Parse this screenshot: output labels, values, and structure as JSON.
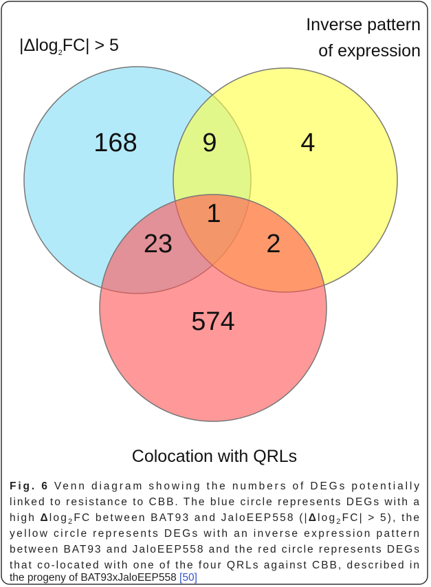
{
  "sets": [
    {
      "label_parts": [
        "|Δlog",
        "2",
        "FC| > 5"
      ]
    },
    {
      "label_lines": [
        "Inverse pattern",
        "of expression"
      ]
    },
    {
      "label": "Colocation with QRLs"
    }
  ],
  "counts": [
    168,
    9,
    4,
    1,
    23,
    2,
    574
  ],
  "caption": {
    "lines": [
      [
        "Fig. 6",
        " Venn diagram showing the numbers of DEGs potentially"
      ],
      [
        "linked to resistance to CBB. The blue circle represents DEGs with a"
      ],
      [
        "high ",
        "Δ",
        "log",
        "2",
        "FC between BAT93 and JaloEEP558 (|",
        "Δ",
        "log",
        "2",
        "FC| > 5), the"
      ],
      [
        "yellow circle represents DEGs with an inverse expression pattern"
      ],
      [
        "between BAT93 and JaloEEP558 and the red circle represents DEGs"
      ],
      [
        "that co-located with one of the four QRLs against CBB, described in"
      ],
      [
        "the progeny of BAT93xJaloEEP558 ",
        "[50]"
      ]
    ]
  }
}
